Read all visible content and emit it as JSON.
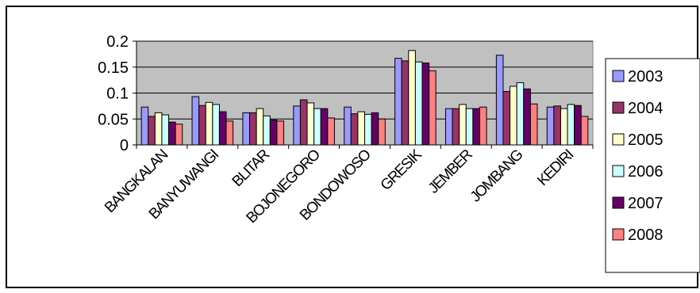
{
  "chart_data": {
    "type": "bar",
    "title": "",
    "xlabel": "",
    "ylabel": "",
    "ylim": [
      0,
      0.2
    ],
    "yticks": [
      "0",
      "0.05",
      "0.1",
      "0.15",
      "0.2"
    ],
    "ytick_values": [
      0,
      0.05,
      0.1,
      0.15,
      0.2
    ],
    "grid": true,
    "legend_position": "right",
    "plot_background": "#c0c0c0",
    "categories": [
      "BANGKALAN",
      "BANYUWANGI",
      "BLITAR",
      "BOJONEGORO",
      "BONDOWOSO",
      "GRESIK",
      "JEMBER",
      "JOMBANG",
      "KEDIRI"
    ],
    "series": [
      {
        "name": "2003",
        "color": "#9999ff",
        "values": [
          0.073,
          0.093,
          0.062,
          0.075,
          0.073,
          0.167,
          0.07,
          0.173,
          0.073
        ]
      },
      {
        "name": "2004",
        "color": "#993366",
        "values": [
          0.055,
          0.076,
          0.062,
          0.087,
          0.06,
          0.162,
          0.07,
          0.103,
          0.075
        ]
      },
      {
        "name": "2005",
        "color": "#ffffcc",
        "values": [
          0.062,
          0.082,
          0.07,
          0.081,
          0.064,
          0.182,
          0.078,
          0.113,
          0.07
        ]
      },
      {
        "name": "2006",
        "color": "#ccffff",
        "values": [
          0.058,
          0.078,
          0.056,
          0.07,
          0.059,
          0.16,
          0.07,
          0.12,
          0.078
        ]
      },
      {
        "name": "2007",
        "color": "#660066",
        "values": [
          0.044,
          0.064,
          0.048,
          0.07,
          0.062,
          0.158,
          0.07,
          0.108,
          0.076
        ]
      },
      {
        "name": "2008",
        "color": "#ff8080",
        "values": [
          0.04,
          0.046,
          0.046,
          0.052,
          0.05,
          0.143,
          0.073,
          0.079,
          0.055
        ]
      }
    ]
  }
}
